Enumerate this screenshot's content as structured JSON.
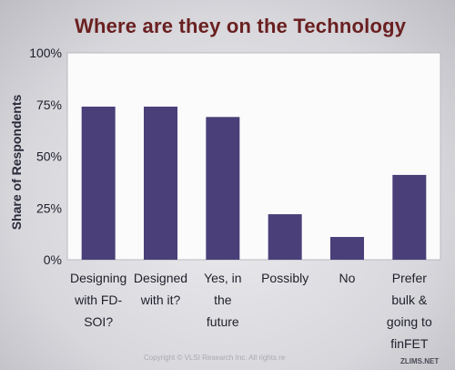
{
  "slide": {
    "title": "Where are they on the Technology",
    "copyright": "Copyright © VLSI Research Inc. All rights re",
    "watermark": "ZLIMS.NET"
  },
  "chart_data": {
    "type": "bar",
    "title": "Where are they on the Technology",
    "xlabel": "",
    "ylabel": "Share of Respondents",
    "ylim": [
      0,
      100
    ],
    "ytick_labels": [
      "0%",
      "25%",
      "50%",
      "75%",
      "100%"
    ],
    "ytick_values": [
      0,
      25,
      50,
      75,
      100
    ],
    "categories": [
      [
        "Designing",
        "with FD-",
        "SOI?"
      ],
      [
        "Designed",
        "with it?"
      ],
      [
        "Yes, in",
        "the",
        "future"
      ],
      [
        "Possibly"
      ],
      [
        "No"
      ],
      [
        "Prefer",
        "bulk &",
        "going to",
        "finFET"
      ]
    ],
    "values": [
      74,
      74,
      69,
      22,
      11,
      41
    ],
    "bar_color": "#4a3f78",
    "grid": false,
    "legend": "none"
  }
}
